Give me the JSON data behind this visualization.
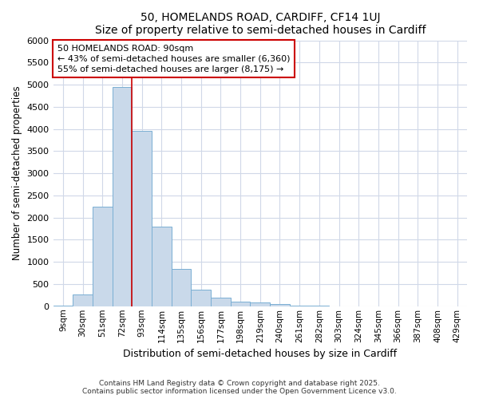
{
  "title1": "50, HOMELANDS ROAD, CARDIFF, CF14 1UJ",
  "title2": "Size of property relative to semi-detached houses in Cardiff",
  "xlabel": "Distribution of semi-detached houses by size in Cardiff",
  "ylabel": "Number of semi-detached properties",
  "categories": [
    "9sqm",
    "30sqm",
    "51sqm",
    "72sqm",
    "93sqm",
    "114sqm",
    "135sqm",
    "156sqm",
    "177sqm",
    "198sqm",
    "219sqm",
    "240sqm",
    "261sqm",
    "282sqm",
    "303sqm",
    "324sqm",
    "345sqm",
    "366sqm",
    "387sqm",
    "408sqm",
    "429sqm"
  ],
  "values": [
    5,
    270,
    2250,
    4950,
    3950,
    1800,
    850,
    380,
    200,
    100,
    80,
    50,
    10,
    5,
    3,
    2,
    1,
    1,
    1,
    1,
    1
  ],
  "bar_color": "#c9d9ea",
  "bar_edge_color": "#7aafd4",
  "vline_index": 3.5,
  "vline_color": "#cc0000",
  "annotation_text": "50 HOMELANDS ROAD: 90sqm\n← 43% of semi-detached houses are smaller (6,360)\n55% of semi-detached houses are larger (8,175) →",
  "annotation_box_color": "#cc0000",
  "ylim": [
    0,
    6000
  ],
  "yticks": [
    0,
    500,
    1000,
    1500,
    2000,
    2500,
    3000,
    3500,
    4000,
    4500,
    5000,
    5500,
    6000
  ],
  "footer1": "Contains HM Land Registry data © Crown copyright and database right 2025.",
  "footer2": "Contains public sector information licensed under the Open Government Licence v3.0.",
  "bg_color": "#ffffff",
  "plot_bg_color": "#ffffff",
  "grid_color": "#d0d8e8"
}
